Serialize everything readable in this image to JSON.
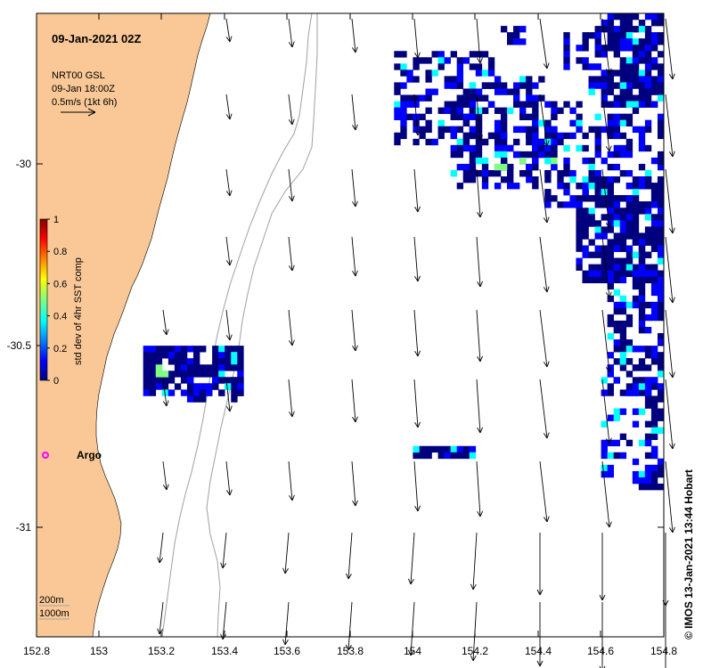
{
  "map": {
    "title": "09-Jan-2021 02Z",
    "current_source": "NRT00 GSL",
    "current_time": "09-Jan 18:00Z",
    "scale_label": "0.5m/s (1kt 6h)",
    "credit": "© IMOS 13-Jan-2021 13:44 Hobart",
    "colorbar_label": "std dev of 4hr SST comp",
    "colorbar_ticks": [
      "0",
      "0.2",
      "0.4",
      "0.6",
      "0.8",
      "1"
    ],
    "x_ticks": [
      "152.8",
      "153",
      "153.2",
      "153.4",
      "153.6",
      "153.8",
      "154",
      "154.2",
      "154.4",
      "154.6",
      "154.8"
    ],
    "y_ticks": [
      "-30",
      "-30.5",
      "-31"
    ],
    "marker_label": "Argo",
    "contour_labels": [
      "200m",
      "1000m"
    ],
    "colors": {
      "land": "#f9c896",
      "sst_dark": "#00007f",
      "sst_blue": "#0000ff",
      "sst_cyan": "#00ffff",
      "sst_green": "#7fff7f",
      "marker": "#ff00ff"
    }
  }
}
